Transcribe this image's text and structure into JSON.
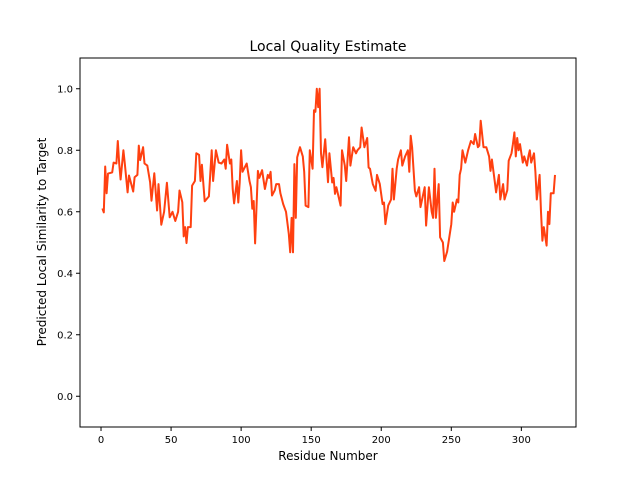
{
  "chart_data": {
    "type": "line",
    "title": "Local Quality Estimate",
    "xlabel": "Residue Number",
    "ylabel": "Predicted Local Similarity to Target",
    "xlim": [
      -15,
      339
    ],
    "ylim": [
      -0.1,
      1.1
    ],
    "xticks": [
      0,
      50,
      100,
      150,
      200,
      250,
      300
    ],
    "yticks": [
      0.0,
      0.2,
      0.4,
      0.6,
      0.8,
      1.0
    ],
    "xtick_labels": [
      "0",
      "50",
      "100",
      "150",
      "200",
      "250",
      "300"
    ],
    "ytick_labels": [
      "0.0",
      "0.2",
      "0.4",
      "0.6",
      "0.8",
      "1.0"
    ],
    "grid": false,
    "line_color": "#ff4010",
    "points": [
      [
        1,
        0.611
      ],
      [
        2,
        0.598
      ],
      [
        3,
        0.747
      ],
      [
        4,
        0.66
      ],
      [
        5,
        0.724
      ],
      [
        8,
        0.728
      ],
      [
        9,
        0.76
      ],
      [
        11,
        0.757
      ],
      [
        12,
        0.83
      ],
      [
        13,
        0.757
      ],
      [
        14,
        0.705
      ],
      [
        16,
        0.8
      ],
      [
        17,
        0.757
      ],
      [
        19,
        0.663
      ],
      [
        20,
        0.718
      ],
      [
        23,
        0.666
      ],
      [
        24,
        0.712
      ],
      [
        26,
        0.72
      ],
      [
        27,
        0.815
      ],
      [
        28,
        0.768
      ],
      [
        30,
        0.81
      ],
      [
        31,
        0.757
      ],
      [
        33,
        0.75
      ],
      [
        35,
        0.696
      ],
      [
        36,
        0.636
      ],
      [
        38,
        0.725
      ],
      [
        40,
        0.604
      ],
      [
        41,
        0.69
      ],
      [
        43,
        0.558
      ],
      [
        45,
        0.6
      ],
      [
        47,
        0.694
      ],
      [
        49,
        0.582
      ],
      [
        51,
        0.6
      ],
      [
        53,
        0.57
      ],
      [
        55,
        0.6
      ],
      [
        56,
        0.669
      ],
      [
        58,
        0.631
      ],
      [
        59,
        0.52
      ],
      [
        60,
        0.55
      ],
      [
        61,
        0.498
      ],
      [
        62,
        0.55
      ],
      [
        64,
        0.55
      ],
      [
        65,
        0.685
      ],
      [
        67,
        0.7
      ],
      [
        68,
        0.79
      ],
      [
        70,
        0.785
      ],
      [
        71,
        0.7
      ],
      [
        72,
        0.753
      ],
      [
        74,
        0.634
      ],
      [
        77,
        0.65
      ],
      [
        79,
        0.8
      ],
      [
        80,
        0.7
      ],
      [
        82,
        0.8
      ],
      [
        84,
        0.76
      ],
      [
        86,
        0.757
      ],
      [
        88,
        0.77
      ],
      [
        89,
        0.74
      ],
      [
        90,
        0.818
      ],
      [
        92,
        0.757
      ],
      [
        93,
        0.77
      ],
      [
        94,
        0.674
      ],
      [
        95,
        0.627
      ],
      [
        97,
        0.7
      ],
      [
        98,
        0.63
      ],
      [
        99,
        0.695
      ],
      [
        100,
        0.8
      ],
      [
        101,
        0.73
      ],
      [
        104,
        0.757
      ],
      [
        106,
        0.7
      ],
      [
        107,
        0.68
      ],
      [
        108,
        0.61
      ],
      [
        109,
        0.635
      ],
      [
        110,
        0.497
      ],
      [
        112,
        0.733
      ],
      [
        113,
        0.71
      ],
      [
        115,
        0.735
      ],
      [
        117,
        0.674
      ],
      [
        119,
        0.72
      ],
      [
        120,
        0.71
      ],
      [
        121,
        0.73
      ],
      [
        122,
        0.653
      ],
      [
        124,
        0.67
      ],
      [
        125,
        0.69
      ],
      [
        127,
        0.69
      ],
      [
        128,
        0.66
      ],
      [
        130,
        0.625
      ],
      [
        132,
        0.6
      ],
      [
        134,
        0.528
      ],
      [
        135,
        0.468
      ],
      [
        136,
        0.58
      ],
      [
        137,
        0.468
      ],
      [
        138,
        0.755
      ],
      [
        139,
        0.58
      ],
      [
        140,
        0.777
      ],
      [
        142,
        0.81
      ],
      [
        144,
        0.78
      ],
      [
        145,
        0.73
      ],
      [
        146,
        0.62
      ],
      [
        148,
        0.615
      ],
      [
        149,
        0.8
      ],
      [
        151,
        0.74
      ],
      [
        152,
        0.93
      ],
      [
        153,
        0.925
      ],
      [
        154,
        1.0
      ],
      [
        155,
        0.94
      ],
      [
        156,
        1.0
      ],
      [
        157,
        0.79
      ],
      [
        158,
        0.745
      ],
      [
        160,
        0.836
      ],
      [
        162,
        0.696
      ],
      [
        163,
        0.79
      ],
      [
        165,
        0.695
      ],
      [
        166,
        0.71
      ],
      [
        167,
        0.658
      ],
      [
        168,
        0.68
      ],
      [
        170,
        0.64
      ],
      [
        171,
        0.62
      ],
      [
        172,
        0.8
      ],
      [
        174,
        0.75
      ],
      [
        175,
        0.7
      ],
      [
        177,
        0.842
      ],
      [
        178,
        0.75
      ],
      [
        180,
        0.81
      ],
      [
        182,
        0.79
      ],
      [
        183,
        0.8
      ],
      [
        185,
        0.81
      ],
      [
        186,
        0.874
      ],
      [
        188,
        0.81
      ],
      [
        190,
        0.84
      ],
      [
        191,
        0.744
      ],
      [
        192,
        0.74
      ],
      [
        194,
        0.69
      ],
      [
        196,
        0.668
      ],
      [
        197,
        0.72
      ],
      [
        199,
        0.69
      ],
      [
        201,
        0.625
      ],
      [
        202,
        0.63
      ],
      [
        203,
        0.56
      ],
      [
        205,
        0.62
      ],
      [
        207,
        0.64
      ],
      [
        208,
        0.74
      ],
      [
        209,
        0.64
      ],
      [
        211,
        0.74
      ],
      [
        212,
        0.77
      ],
      [
        214,
        0.8
      ],
      [
        215,
        0.75
      ],
      [
        217,
        0.78
      ],
      [
        219,
        0.8
      ],
      [
        220,
        0.73
      ],
      [
        221,
        0.847
      ],
      [
        222,
        0.81
      ],
      [
        224,
        0.668
      ],
      [
        225,
        0.65
      ],
      [
        227,
        0.68
      ],
      [
        228,
        0.615
      ],
      [
        231,
        0.68
      ],
      [
        232,
        0.555
      ],
      [
        234,
        0.68
      ],
      [
        236,
        0.6
      ],
      [
        237,
        0.58
      ],
      [
        238,
        0.74
      ],
      [
        239,
        0.58
      ],
      [
        241,
        0.69
      ],
      [
        242,
        0.517
      ],
      [
        244,
        0.5
      ],
      [
        245,
        0.44
      ],
      [
        247,
        0.47
      ],
      [
        250,
        0.56
      ],
      [
        251,
        0.63
      ],
      [
        252,
        0.6
      ],
      [
        254,
        0.64
      ],
      [
        255,
        0.63
      ],
      [
        256,
        0.72
      ],
      [
        257,
        0.74
      ],
      [
        258,
        0.8
      ],
      [
        260,
        0.76
      ],
      [
        262,
        0.8
      ],
      [
        264,
        0.83
      ],
      [
        266,
        0.82
      ],
      [
        267,
        0.853
      ],
      [
        269,
        0.81
      ],
      [
        270,
        0.815
      ],
      [
        271,
        0.896
      ],
      [
        273,
        0.81
      ],
      [
        275,
        0.81
      ],
      [
        277,
        0.78
      ],
      [
        278,
        0.733
      ],
      [
        279,
        0.77
      ],
      [
        281,
        0.7
      ],
      [
        282,
        0.663
      ],
      [
        284,
        0.72
      ],
      [
        285,
        0.64
      ],
      [
        287,
        0.69
      ],
      [
        288,
        0.64
      ],
      [
        290,
        0.67
      ],
      [
        291,
        0.766
      ],
      [
        293,
        0.79
      ],
      [
        294,
        0.82
      ],
      [
        295,
        0.858
      ],
      [
        296,
        0.78
      ],
      [
        297,
        0.84
      ],
      [
        298,
        0.8
      ],
      [
        299,
        0.82
      ],
      [
        301,
        0.76
      ],
      [
        302,
        0.78
      ],
      [
        304,
        0.75
      ],
      [
        305,
        0.78
      ],
      [
        306,
        0.8
      ],
      [
        307,
        0.76
      ],
      [
        309,
        0.79
      ],
      [
        310,
        0.73
      ],
      [
        311,
        0.64
      ],
      [
        313,
        0.72
      ],
      [
        314,
        0.6
      ],
      [
        315,
        0.506
      ],
      [
        316,
        0.55
      ],
      [
        318,
        0.49
      ],
      [
        319,
        0.6
      ],
      [
        320,
        0.56
      ],
      [
        321,
        0.66
      ],
      [
        322,
        0.66
      ],
      [
        323,
        0.66
      ],
      [
        324,
        0.72
      ]
    ]
  }
}
